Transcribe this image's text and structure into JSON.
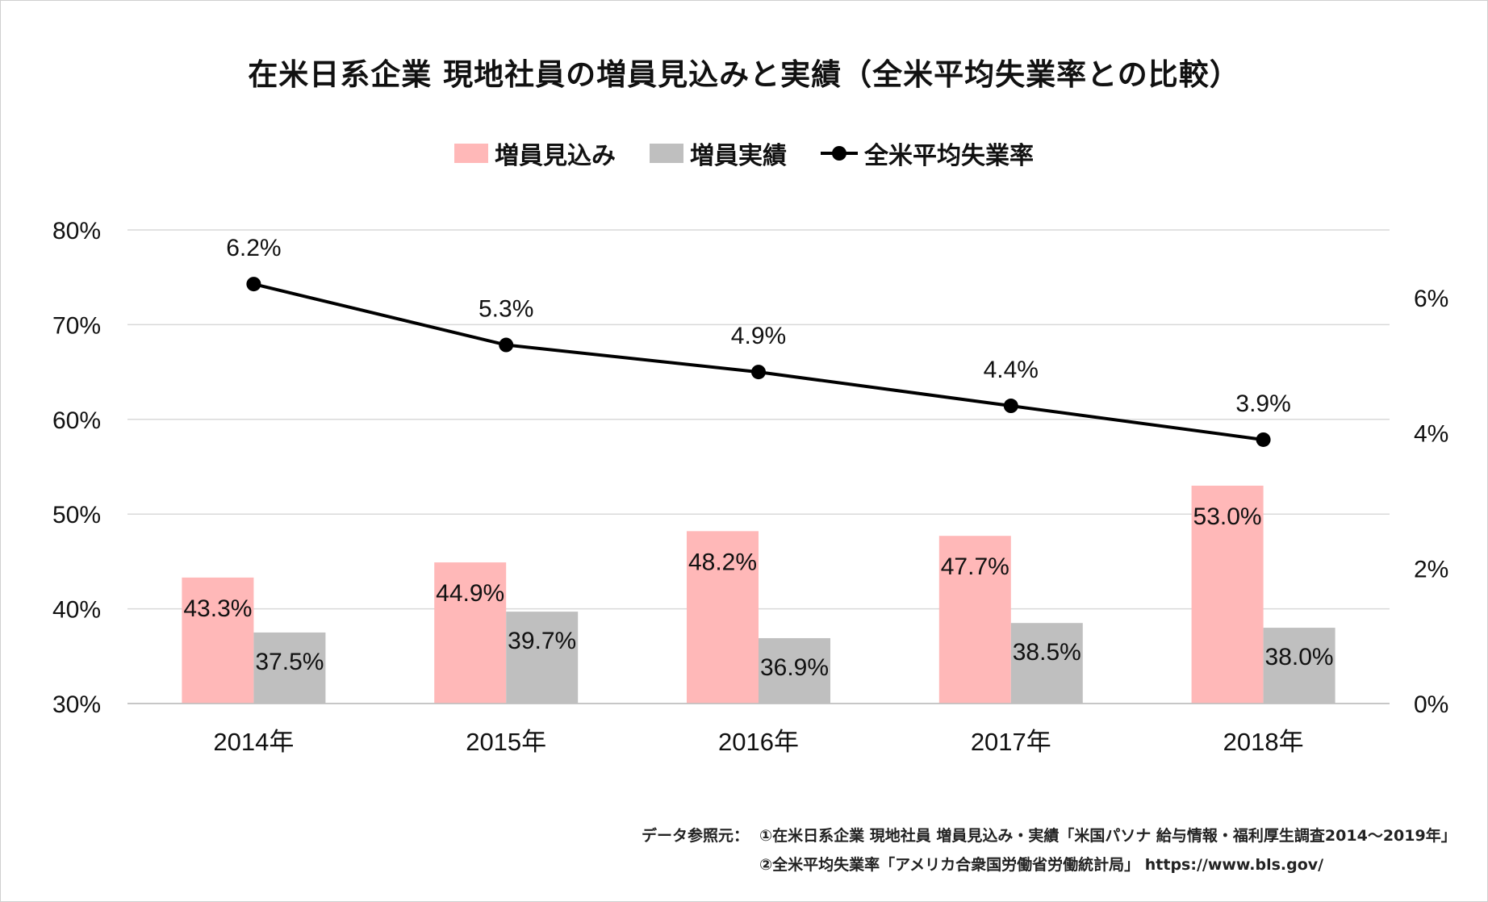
{
  "title": "在米日系企業 現地社員の増員見込みと実績（全米平均失業率との比較）",
  "legend": {
    "expected": "増員見込み",
    "actual": "増員実績",
    "unemployment": "全米平均失業率"
  },
  "colors": {
    "expected": "#ffb8b8",
    "actual": "#bfbfbf",
    "line": "#000000",
    "grid": "#d9d9d9"
  },
  "footer": {
    "label": "データ参照元：",
    "source1": "①在米日系企業 現地社員 増員見込み・実績「米国パソナ 給与情報・福利厚生調査2014〜2019年」",
    "source2": "②全米平均失業率「アメリカ合衆国労働省労働統計局」 https://www.bls.gov/"
  },
  "chart_data": {
    "type": "bar",
    "categories": [
      "2014年",
      "2015年",
      "2016年",
      "2017年",
      "2018年"
    ],
    "series": [
      {
        "name": "増員見込み",
        "type": "bar",
        "axis": "left",
        "values": [
          43.3,
          44.9,
          48.2,
          47.7,
          53.0
        ],
        "labels": [
          "43.3%",
          "44.9%",
          "48.2%",
          "47.7%",
          "53.0%"
        ]
      },
      {
        "name": "増員実績",
        "type": "bar",
        "axis": "left",
        "values": [
          37.5,
          39.7,
          36.9,
          38.5,
          38.0
        ],
        "labels": [
          "37.5%",
          "39.7%",
          "36.9%",
          "38.5%",
          "38.0%"
        ]
      },
      {
        "name": "全米平均失業率",
        "type": "line",
        "axis": "right",
        "values": [
          6.2,
          5.3,
          4.9,
          4.4,
          3.9
        ],
        "labels": [
          "6.2%",
          "5.3%",
          "4.9%",
          "4.4%",
          "3.9%"
        ]
      }
    ],
    "y_left": {
      "range": [
        30,
        80
      ],
      "ticks": [
        "30%",
        "40%",
        "50%",
        "60%",
        "70%",
        "80%"
      ]
    },
    "y_right": {
      "range": [
        0,
        7
      ],
      "ticks": [
        "0%",
        "2%",
        "4%",
        "6%"
      ]
    },
    "grid": true,
    "legend_position": "top"
  }
}
